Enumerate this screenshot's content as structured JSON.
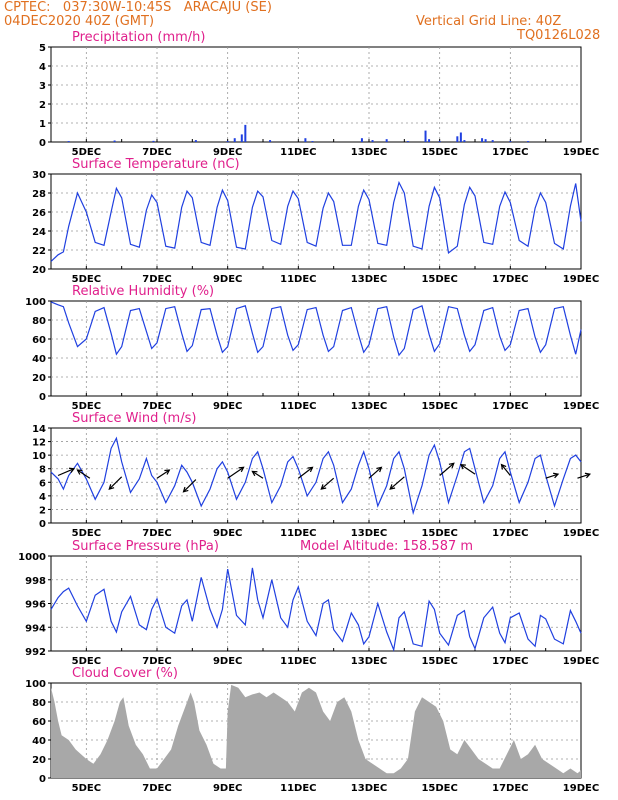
{
  "header": {
    "station": "CPTEC:   037:30W-10:45S   ARACAJU (SE)",
    "date": "04DEC2020 40Z (GMT)",
    "grid_line": "Vertical Grid Line: 40Z",
    "code": "TQ0126L028"
  },
  "colors": {
    "header": "#e07020",
    "title": "#e0208c",
    "line": "#2040e0",
    "bar": "#2040e0",
    "cloud": "#a8a8a8",
    "wind_arrow": "#000000"
  },
  "x_axis": {
    "start_day": 4,
    "end_day": 19,
    "tick_days": [
      5,
      7,
      9,
      11,
      13,
      15,
      17,
      19
    ],
    "tick_labels": [
      "5DEC",
      "7DEC",
      "9DEC",
      "11DEC",
      "13DEC",
      "15DEC",
      "17DEC",
      "19DEC"
    ]
  },
  "chart_data": [
    {
      "type": "bar",
      "title": "Precipitation (mm/h)",
      "ylim": [
        0,
        5
      ],
      "yticks": [
        0,
        1,
        2,
        3,
        4,
        5
      ],
      "x_unit": "day of December 2020",
      "x": [
        4.5,
        5.8,
        6.9,
        8.1,
        9.0,
        9.2,
        9.4,
        9.5,
        10.2,
        11.2,
        11.4,
        12.8,
        13.1,
        13.5,
        14.1,
        14.6,
        14.7,
        15.0,
        15.5,
        15.6,
        15.7,
        16.2,
        16.3,
        16.5,
        17.0,
        17.5
      ],
      "values": [
        0.05,
        0.08,
        0.06,
        0.1,
        0.05,
        0.2,
        0.4,
        0.9,
        0.1,
        0.2,
        0.05,
        0.2,
        0.1,
        0.15,
        0.05,
        0.6,
        0.15,
        0.05,
        0.3,
        0.5,
        0.1,
        0.2,
        0.15,
        0.1,
        0.05,
        0.05
      ]
    },
    {
      "type": "line",
      "title": "Surface Temperature (nC)",
      "ylim": [
        20,
        30
      ],
      "yticks": [
        20,
        22,
        24,
        26,
        28,
        30
      ],
      "series": [
        {
          "x": [
            4.0,
            4.2,
            4.35,
            4.5,
            4.75,
            5.0,
            5.25,
            5.5,
            5.7,
            5.85,
            6.0,
            6.25,
            6.5,
            6.7,
            6.85,
            7.0,
            7.25,
            7.5,
            7.7,
            7.85,
            8.0,
            8.25,
            8.5,
            8.7,
            8.85,
            9.0,
            9.25,
            9.5,
            9.7,
            9.85,
            10.0,
            10.25,
            10.5,
            10.7,
            10.85,
            11.0,
            11.25,
            11.5,
            11.7,
            11.85,
            12.0,
            12.25,
            12.5,
            12.7,
            12.85,
            13.0,
            13.25,
            13.5,
            13.7,
            13.85,
            14.0,
            14.25,
            14.5,
            14.7,
            14.85,
            15.0,
            15.25,
            15.5,
            15.7,
            15.85,
            16.0,
            16.25,
            16.5,
            16.7,
            16.85,
            17.0,
            17.25,
            17.5,
            17.7,
            17.85,
            18.0,
            18.25,
            18.5,
            18.7,
            18.85,
            19.0
          ],
          "values": [
            20.8,
            21.5,
            21.8,
            24.5,
            28.0,
            26.0,
            22.8,
            22.5,
            26.0,
            28.5,
            27.5,
            22.6,
            22.3,
            26.2,
            27.8,
            27.0,
            22.4,
            22.2,
            26.5,
            28.2,
            27.5,
            22.8,
            22.5,
            26.5,
            28.3,
            27.2,
            22.3,
            22.1,
            26.5,
            28.2,
            27.6,
            23.0,
            22.6,
            26.6,
            28.2,
            27.4,
            22.8,
            22.4,
            26.4,
            28.0,
            27.1,
            22.5,
            22.5,
            26.6,
            28.3,
            27.3,
            22.7,
            22.5,
            27.0,
            29.1,
            28.0,
            22.4,
            22.1,
            26.6,
            28.6,
            27.5,
            21.7,
            22.4,
            26.8,
            28.6,
            27.7,
            22.8,
            22.6,
            26.6,
            28.1,
            27.0,
            23.0,
            22.4,
            26.4,
            28.0,
            27.0,
            22.7,
            22.1,
            26.6,
            29.0,
            25.0
          ]
        }
      ]
    },
    {
      "type": "line",
      "title": "Relative Humidity (%)",
      "ylim": [
        0,
        100
      ],
      "yticks": [
        0,
        20,
        40,
        60,
        80,
        100
      ],
      "series": [
        {
          "x": [
            4.0,
            4.2,
            4.35,
            4.5,
            4.75,
            5.0,
            5.25,
            5.5,
            5.7,
            5.85,
            6.0,
            6.25,
            6.5,
            6.7,
            6.85,
            7.0,
            7.25,
            7.5,
            7.7,
            7.85,
            8.0,
            8.25,
            8.5,
            8.7,
            8.85,
            9.0,
            9.25,
            9.5,
            9.7,
            9.85,
            10.0,
            10.25,
            10.5,
            10.7,
            10.85,
            11.0,
            11.25,
            11.5,
            11.7,
            11.85,
            12.0,
            12.25,
            12.5,
            12.7,
            12.85,
            13.0,
            13.25,
            13.5,
            13.7,
            13.85,
            14.0,
            14.25,
            14.5,
            14.7,
            14.85,
            15.0,
            15.25,
            15.5,
            15.7,
            15.85,
            16.0,
            16.25,
            16.5,
            16.7,
            16.85,
            17.0,
            17.25,
            17.5,
            17.7,
            17.85,
            18.0,
            18.25,
            18.5,
            18.7,
            18.85,
            19.0
          ],
          "values": [
            99,
            96,
            94,
            77,
            52,
            60,
            89,
            93,
            66,
            44,
            52,
            90,
            92,
            68,
            50,
            56,
            92,
            94,
            66,
            47,
            53,
            91,
            92,
            64,
            46,
            52,
            92,
            95,
            66,
            46,
            52,
            92,
            94,
            64,
            48,
            54,
            91,
            93,
            64,
            47,
            52,
            90,
            93,
            65,
            46,
            54,
            92,
            94,
            62,
            43,
            50,
            91,
            95,
            65,
            47,
            55,
            94,
            92,
            64,
            47,
            54,
            90,
            93,
            63,
            48,
            54,
            90,
            92,
            62,
            46,
            54,
            92,
            94,
            64,
            44,
            70
          ]
        }
      ]
    },
    {
      "type": "line",
      "title": "Surface Wind (m/s)",
      "ylim": [
        0,
        14
      ],
      "yticks": [
        0,
        2,
        4,
        6,
        8,
        10,
        12,
        14
      ],
      "series": [
        {
          "x": [
            4.0,
            4.2,
            4.35,
            4.5,
            4.75,
            5.0,
            5.25,
            5.5,
            5.7,
            5.85,
            6.0,
            6.25,
            6.5,
            6.7,
            6.85,
            7.0,
            7.25,
            7.5,
            7.7,
            7.85,
            8.0,
            8.25,
            8.5,
            8.7,
            8.85,
            9.0,
            9.25,
            9.5,
            9.7,
            9.85,
            10.0,
            10.25,
            10.5,
            10.7,
            10.85,
            11.0,
            11.25,
            11.5,
            11.7,
            11.85,
            12.0,
            12.25,
            12.5,
            12.7,
            12.85,
            13.0,
            13.25,
            13.5,
            13.7,
            13.85,
            14.0,
            14.25,
            14.5,
            14.7,
            14.85,
            15.0,
            15.25,
            15.5,
            15.7,
            15.85,
            16.0,
            16.25,
            16.5,
            16.7,
            16.85,
            17.0,
            17.25,
            17.5,
            17.7,
            17.85,
            18.0,
            18.25,
            18.5,
            18.7,
            18.85,
            19.0
          ],
          "values": [
            7.5,
            6.5,
            5.0,
            7.0,
            8.8,
            6.5,
            3.5,
            6.0,
            11.0,
            12.5,
            9.0,
            4.5,
            6.5,
            9.5,
            7.0,
            6.0,
            3.0,
            5.5,
            8.5,
            7.5,
            6.0,
            2.5,
            5.0,
            8.0,
            9.0,
            7.5,
            3.5,
            6.0,
            9.5,
            10.5,
            8.0,
            3.0,
            5.5,
            9.0,
            9.8,
            8.0,
            4.0,
            6.0,
            9.5,
            10.5,
            8.5,
            3.0,
            5.0,
            8.5,
            10.5,
            8.0,
            2.5,
            5.5,
            9.5,
            10.5,
            8.0,
            1.5,
            5.5,
            10.0,
            11.5,
            9.0,
            3.0,
            7.0,
            10.5,
            11.0,
            8.0,
            3.0,
            5.5,
            9.5,
            10.5,
            7.5,
            3.0,
            6.0,
            9.5,
            10.0,
            7.0,
            2.5,
            6.5,
            9.5,
            10.0,
            9.0
          ]
        }
      ],
      "wind_arrows": [
        {
          "x": 4.2,
          "y": 7.0,
          "dx": 0.9,
          "dy": 0.5
        },
        {
          "x": 5.1,
          "y": 6.6,
          "dx": -0.7,
          "dy": 0.6
        },
        {
          "x": 6.0,
          "y": 6.8,
          "dx": -0.7,
          "dy": -0.9
        },
        {
          "x": 7.0,
          "y": 6.6,
          "dx": 0.7,
          "dy": 0.6
        },
        {
          "x": 8.1,
          "y": 6.4,
          "dx": -0.7,
          "dy": -0.9
        },
        {
          "x": 9.0,
          "y": 6.6,
          "dx": 0.9,
          "dy": 0.8
        },
        {
          "x": 10.0,
          "y": 6.6,
          "dx": -0.6,
          "dy": 0.5
        },
        {
          "x": 11.0,
          "y": 6.6,
          "dx": 0.8,
          "dy": 0.8
        },
        {
          "x": 12.0,
          "y": 6.6,
          "dx": -0.7,
          "dy": -0.8
        },
        {
          "x": 13.0,
          "y": 6.6,
          "dx": 0.7,
          "dy": 0.8
        },
        {
          "x": 14.0,
          "y": 6.8,
          "dx": -0.8,
          "dy": -0.9
        },
        {
          "x": 15.0,
          "y": 7.0,
          "dx": 0.8,
          "dy": 0.9
        },
        {
          "x": 16.0,
          "y": 7.2,
          "dx": -0.8,
          "dy": 0.7
        },
        {
          "x": 17.0,
          "y": 7.0,
          "dx": -0.5,
          "dy": 0.8
        },
        {
          "x": 18.0,
          "y": 6.6,
          "dx": 0.7,
          "dy": 0.3
        },
        {
          "x": 18.9,
          "y": 6.6,
          "dx": 0.7,
          "dy": 0.3
        }
      ]
    },
    {
      "type": "line",
      "title": "Surface Pressure (hPa)",
      "annotation": "Model Altitude: 158.587  m",
      "ylim": [
        992,
        1000
      ],
      "yticks": [
        992,
        994,
        996,
        998,
        1000
      ],
      "series": [
        {
          "x": [
            4.0,
            4.2,
            4.35,
            4.5,
            4.75,
            5.0,
            5.25,
            5.5,
            5.7,
            5.85,
            6.0,
            6.25,
            6.5,
            6.7,
            6.85,
            7.0,
            7.25,
            7.5,
            7.7,
            7.85,
            8.0,
            8.25,
            8.5,
            8.7,
            8.85,
            9.0,
            9.25,
            9.5,
            9.7,
            9.85,
            10.0,
            10.25,
            10.5,
            10.7,
            10.85,
            11.0,
            11.25,
            11.5,
            11.7,
            11.85,
            12.0,
            12.25,
            12.5,
            12.7,
            12.85,
            13.0,
            13.25,
            13.5,
            13.7,
            13.85,
            14.0,
            14.25,
            14.5,
            14.7,
            14.85,
            15.0,
            15.25,
            15.5,
            15.7,
            15.85,
            16.0,
            16.25,
            16.5,
            16.7,
            16.85,
            17.0,
            17.25,
            17.5,
            17.7,
            17.85,
            18.0,
            18.25,
            18.5,
            18.7,
            18.85,
            19.0
          ],
          "values": [
            995.5,
            996.5,
            997.0,
            997.3,
            995.8,
            994.5,
            996.7,
            997.2,
            994.5,
            993.6,
            995.3,
            996.6,
            994.2,
            993.8,
            995.5,
            996.4,
            994.0,
            993.5,
            995.8,
            996.3,
            994.5,
            998.2,
            995.5,
            994.0,
            995.5,
            998.9,
            995.0,
            994.2,
            999.0,
            996.3,
            994.8,
            998.0,
            994.8,
            994.0,
            996.3,
            997.4,
            994.5,
            993.3,
            996.0,
            996.3,
            993.8,
            992.8,
            995.2,
            994.2,
            992.6,
            993.2,
            996.0,
            993.6,
            992.1,
            994.8,
            995.3,
            992.6,
            992.4,
            996.2,
            995.5,
            993.5,
            992.5,
            995.0,
            995.4,
            993.2,
            992.2,
            994.8,
            995.7,
            993.5,
            992.7,
            994.8,
            995.2,
            993.0,
            992.4,
            995.0,
            994.7,
            993.0,
            992.6,
            995.4,
            994.5,
            993.5
          ]
        }
      ]
    },
    {
      "type": "area",
      "title": "Cloud Cover (%)",
      "ylim": [
        0,
        100
      ],
      "yticks": [
        0,
        20,
        40,
        60,
        80,
        100
      ],
      "series": [
        {
          "x": [
            4.0,
            4.1,
            4.2,
            4.3,
            4.5,
            4.7,
            5.0,
            5.2,
            5.4,
            5.6,
            5.8,
            5.95,
            6.05,
            6.2,
            6.4,
            6.6,
            6.8,
            7.0,
            7.2,
            7.4,
            7.6,
            7.8,
            7.95,
            8.05,
            8.2,
            8.4,
            8.6,
            8.8,
            8.95,
            9.0,
            9.1,
            9.3,
            9.5,
            9.7,
            9.9,
            10.1,
            10.3,
            10.5,
            10.7,
            10.9,
            11.1,
            11.3,
            11.5,
            11.7,
            11.9,
            12.1,
            12.3,
            12.5,
            12.7,
            12.9,
            13.1,
            13.3,
            13.5,
            13.7,
            13.9,
            14.1,
            14.3,
            14.5,
            14.7,
            14.9,
            15.1,
            15.3,
            15.5,
            15.7,
            15.9,
            16.1,
            16.3,
            16.5,
            16.7,
            16.9,
            17.1,
            17.3,
            17.5,
            17.7,
            17.9,
            18.1,
            18.3,
            18.5,
            18.7,
            18.9,
            19.0
          ],
          "values": [
            95,
            80,
            60,
            45,
            40,
            30,
            20,
            15,
            25,
            40,
            60,
            80,
            85,
            55,
            35,
            25,
            10,
            10,
            20,
            30,
            55,
            75,
            90,
            80,
            50,
            35,
            15,
            10,
            10,
            70,
            98,
            95,
            85,
            88,
            90,
            85,
            90,
            85,
            80,
            70,
            90,
            95,
            90,
            70,
            60,
            80,
            85,
            70,
            40,
            20,
            15,
            10,
            5,
            5,
            10,
            20,
            70,
            85,
            80,
            75,
            60,
            30,
            25,
            40,
            30,
            20,
            15,
            10,
            10,
            25,
            40,
            20,
            25,
            35,
            20,
            15,
            10,
            5,
            10,
            5,
            8
          ]
        }
      ]
    }
  ]
}
